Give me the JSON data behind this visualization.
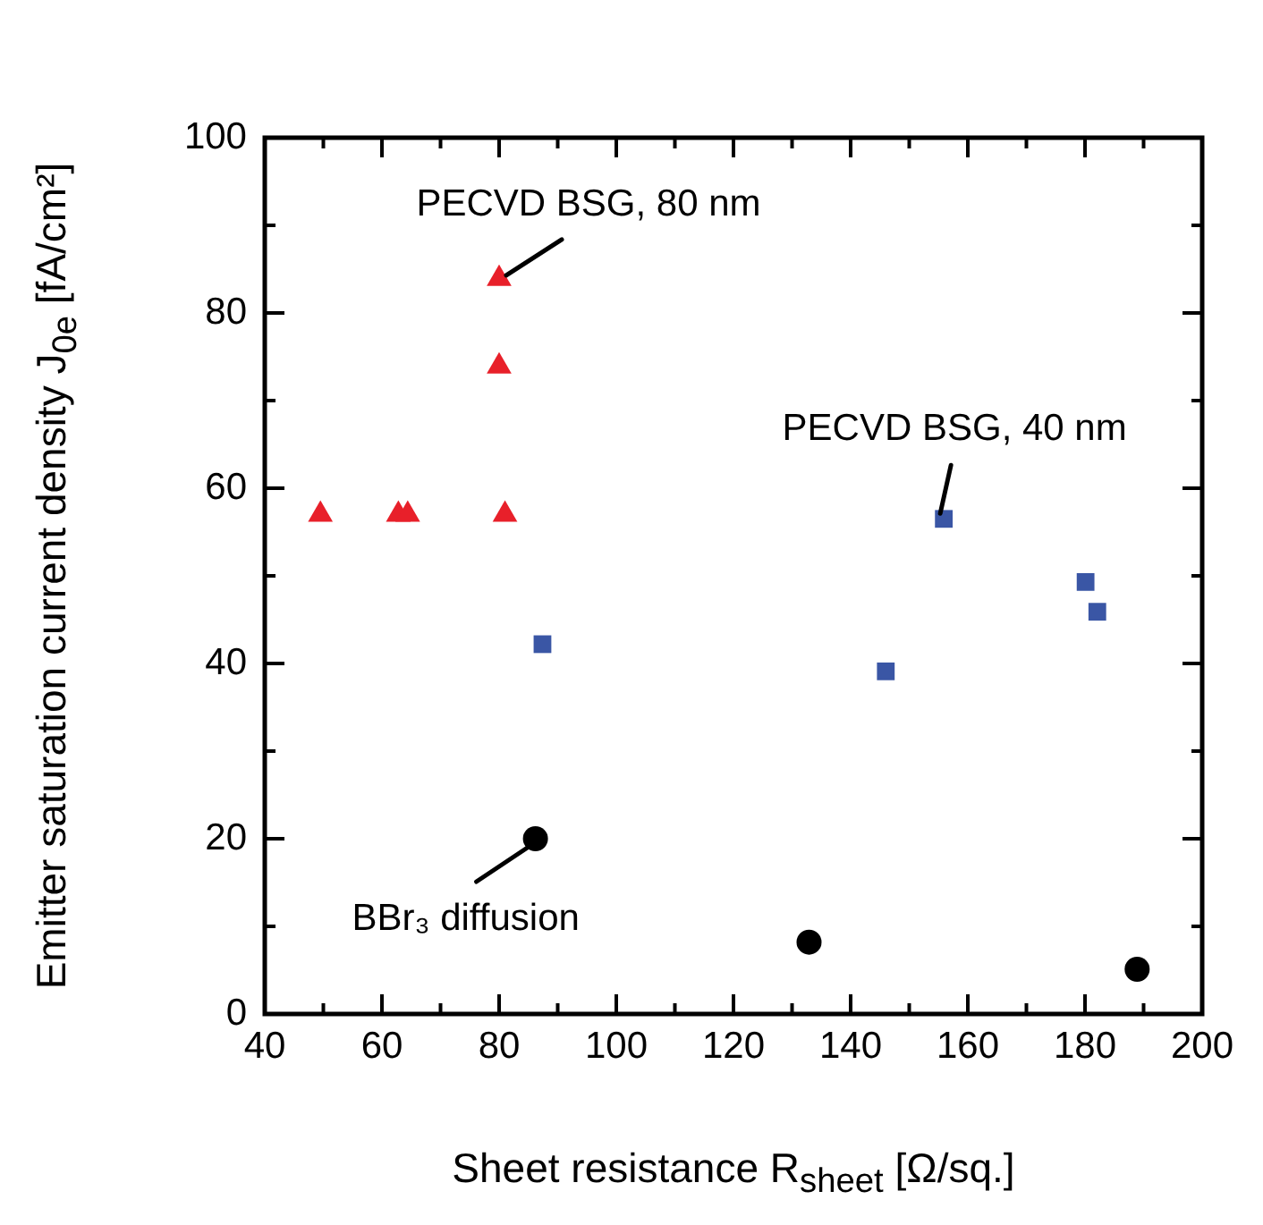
{
  "chart_data": {
    "type": "scatter",
    "xlabel": "Sheet resistance R$_{sheet}$ [Ω/sq.]",
    "ylabel": "Emitter saturation current density J$_{0e}$ [fA/cm²]",
    "xlim": [
      40,
      200
    ],
    "ylim": [
      0,
      100
    ],
    "xticks": [
      40,
      {
        "value": 50,
        "label": null
      },
      60,
      {
        "value": 70,
        "label": null
      },
      80,
      {
        "value": 90,
        "label": null
      },
      100,
      {
        "value": 110,
        "label": null
      },
      120,
      {
        "value": 130,
        "label": null
      },
      140,
      {
        "value": 150,
        "label": null
      },
      160,
      {
        "value": 170,
        "label": null
      },
      180,
      {
        "value": 190,
        "label": null
      },
      200
    ],
    "yticks": [
      0,
      {
        "value": 10,
        "label": null
      },
      20,
      {
        "value": 30,
        "label": null
      },
      40,
      {
        "value": 50,
        "label": null
      },
      60,
      {
        "value": 70,
        "label": null
      },
      80,
      {
        "value": 90,
        "label": null
      },
      100
    ],
    "grid": false,
    "legend": false,
    "series": [
      {
        "color": "#e8202a",
        "marker": "triangle",
        "x": [
          49.5,
          62.8,
          64.4,
          80,
          80,
          81
        ],
        "values": [
          57,
          57,
          57,
          83.9,
          73.9,
          57
        ]
      },
      {
        "color": "#3a56a5",
        "marker": "square",
        "x": [
          87.4,
          146,
          155.9,
          180.1,
          182.1
        ],
        "values": [
          42.2,
          39.1,
          56.5,
          49.3,
          45.9
        ]
      },
      {
        "color": "#000000",
        "marker": "circle",
        "x": [
          86.2,
          132.9,
          188.9
        ],
        "values": [
          20,
          8.2,
          5.1
        ]
      }
    ],
    "annotations": [
      {
        "text": "PECVD BSG, 80 nm",
        "x": 80,
        "y": 83.9
      },
      {
        "text": "PECVD BSG, 40 nm",
        "x": 155.9,
        "y": 56.5
      },
      {
        "text": "BBr₃ diffusion",
        "x": 86.2,
        "y": 20
      }
    ]
  }
}
